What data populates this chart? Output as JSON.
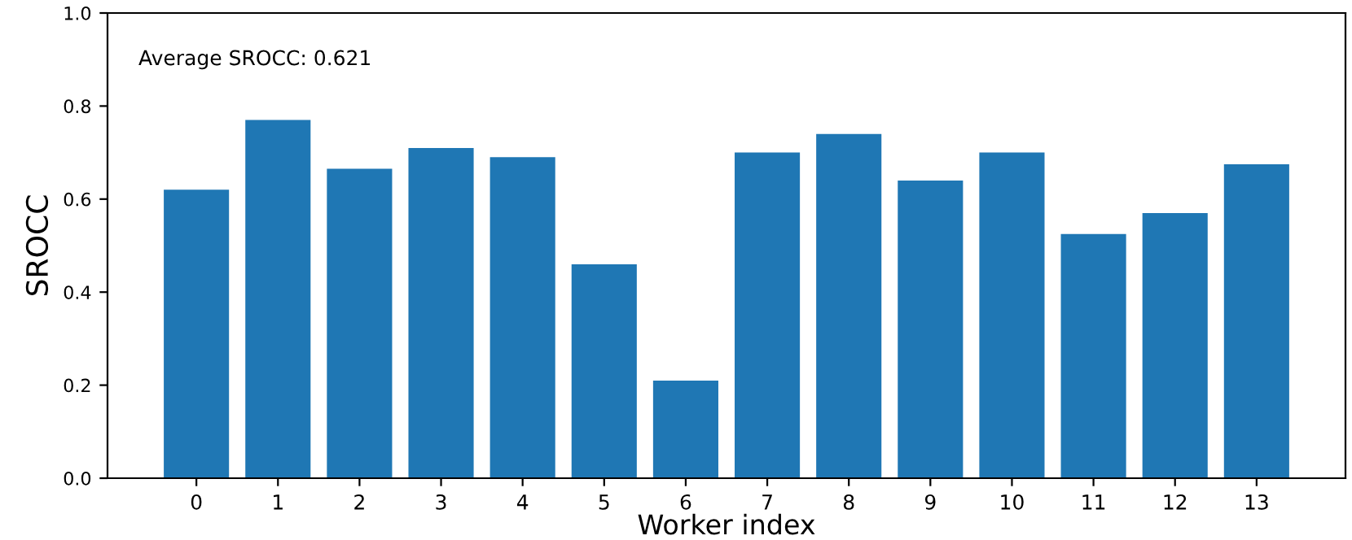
{
  "chart_data": {
    "type": "bar",
    "xlabel": "Worker index",
    "ylabel": "SROCC",
    "categories": [
      "0",
      "1",
      "2",
      "3",
      "4",
      "5",
      "6",
      "7",
      "8",
      "9",
      "10",
      "11",
      "12",
      "13"
    ],
    "values": [
      0.62,
      0.77,
      0.665,
      0.71,
      0.69,
      0.46,
      0.21,
      0.7,
      0.74,
      0.64,
      0.7,
      0.525,
      0.57,
      0.675
    ],
    "color": "#1f77b4",
    "ylim": [
      0,
      1.0
    ],
    "yticks": [
      {
        "value": 0,
        "label": "0.0"
      },
      0.2,
      0.4,
      0.6,
      0.8,
      {
        "value": 1.0,
        "label": "1.0"
      }
    ],
    "annotations": [
      "Average SROCC: 0.621"
    ],
    "grid": false,
    "legend": false
  }
}
